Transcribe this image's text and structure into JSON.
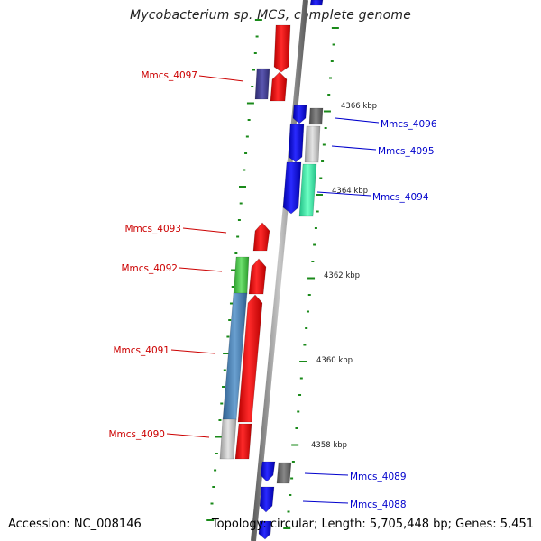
{
  "title": "Mycobacterium sp. MCS, complete genome",
  "footer": {
    "accession": "Accession: NC_008146",
    "topology": "Topology: circular; Length: 5,705,448 bp; Genes: 5,451"
  },
  "colors": {
    "backbone": "#888888",
    "tick": "#1a8a1a",
    "forward_label": "#cc0000",
    "reverse_label": "#0000cc"
  },
  "scale_labels": [
    "4366 kbp",
    "4364 kbp",
    "4362 kbp",
    "4360 kbp",
    "4358 kbp"
  ],
  "genes": [
    {
      "label": "Mmcs_4097",
      "strand": "forward"
    },
    {
      "label": "Mmcs_4096",
      "strand": "reverse"
    },
    {
      "label": "Mmcs_4095",
      "strand": "reverse"
    },
    {
      "label": "Mmcs_4094",
      "strand": "reverse"
    },
    {
      "label": "Mmcs_4093",
      "strand": "forward"
    },
    {
      "label": "Mmcs_4092",
      "strand": "forward"
    },
    {
      "label": "Mmcs_4091",
      "strand": "forward"
    },
    {
      "label": "Mmcs_4090",
      "strand": "forward"
    },
    {
      "label": "Mmcs_4089",
      "strand": "reverse"
    },
    {
      "label": "Mmcs_4088",
      "strand": "reverse"
    }
  ]
}
